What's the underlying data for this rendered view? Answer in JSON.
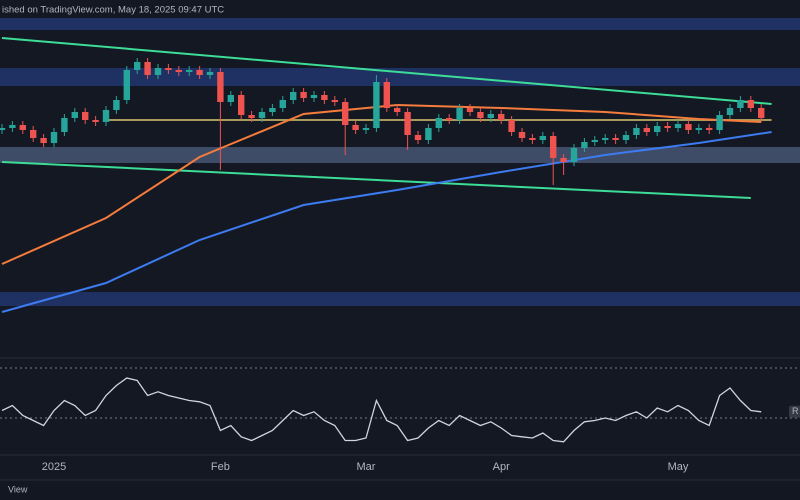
{
  "header": "ished on TradingView.com, May 18, 2025 09:47 UTC",
  "footer": "View",
  "chart_data": [
    {
      "type": "candlestick",
      "categories": [
        null,
        null,
        null,
        null,
        null,
        "2025",
        null,
        null,
        null,
        null,
        null,
        null,
        null,
        null,
        null,
        null,
        null,
        null,
        null,
        null,
        null,
        "Feb",
        null,
        null,
        null,
        null,
        null,
        null,
        null,
        null,
        null,
        null,
        null,
        null,
        null,
        "Mar",
        null,
        null,
        null,
        null,
        null,
        null,
        null,
        null,
        null,
        null,
        null,
        null,
        "Apr",
        null,
        null,
        null,
        null,
        null,
        null,
        null,
        null,
        null,
        null,
        null,
        null,
        null,
        null,
        null,
        null,
        "May",
        null,
        null,
        null,
        null,
        null,
        null,
        null,
        null
      ],
      "open": [
        230,
        232,
        235,
        230,
        222,
        217,
        228,
        242,
        248,
        240,
        238,
        250,
        260,
        290,
        298,
        285,
        292,
        290,
        288,
        290,
        285,
        288,
        258,
        265,
        245,
        242,
        248,
        252,
        260,
        268,
        262,
        265,
        260,
        258,
        235,
        230,
        232,
        278,
        252,
        248,
        225,
        220,
        232,
        242,
        240,
        252,
        248,
        242,
        246,
        240,
        228,
        222,
        220,
        224,
        202,
        198,
        212,
        218,
        220,
        222,
        220,
        225,
        232,
        228,
        234,
        232,
        236,
        230,
        232,
        230,
        245,
        252,
        260,
        252
      ],
      "high": [
        236,
        239,
        239,
        234,
        226,
        232,
        246,
        252,
        252,
        244,
        254,
        264,
        294,
        302,
        302,
        296,
        296,
        294,
        294,
        294,
        292,
        292,
        269,
        269,
        249,
        252,
        256,
        264,
        272,
        272,
        269,
        269,
        264,
        262,
        239,
        236,
        285,
        282,
        256,
        252,
        229,
        236,
        246,
        246,
        256,
        256,
        252,
        250,
        250,
        244,
        232,
        226,
        228,
        228,
        206,
        216,
        222,
        224,
        226,
        226,
        229,
        236,
        236,
        238,
        238,
        240,
        240,
        236,
        236,
        249,
        256,
        264,
        264,
        256
      ],
      "low": [
        226,
        228,
        226,
        218,
        213,
        213,
        224,
        238,
        236,
        234,
        234,
        246,
        256,
        286,
        281,
        281,
        286,
        284,
        284,
        281,
        281,
        190,
        254,
        241,
        238,
        238,
        244,
        248,
        256,
        258,
        258,
        256,
        254,
        205,
        226,
        226,
        228,
        248,
        244,
        210,
        216,
        216,
        228,
        236,
        236,
        244,
        238,
        238,
        236,
        224,
        218,
        216,
        216,
        175,
        185,
        194,
        208,
        214,
        216,
        216,
        216,
        221,
        224,
        224,
        228,
        228,
        226,
        226,
        226,
        226,
        241,
        248,
        248,
        238
      ],
      "close": [
        232,
        235,
        230,
        222,
        217,
        228,
        242,
        248,
        240,
        238,
        250,
        260,
        290,
        298,
        285,
        292,
        290,
        288,
        290,
        285,
        288,
        258,
        265,
        245,
        242,
        248,
        252,
        260,
        268,
        262,
        265,
        260,
        258,
        235,
        230,
        232,
        278,
        252,
        248,
        225,
        220,
        232,
        242,
        240,
        252,
        248,
        242,
        246,
        240,
        228,
        222,
        220,
        224,
        202,
        198,
        212,
        218,
        220,
        222,
        220,
        225,
        232,
        228,
        234,
        232,
        236,
        230,
        232,
        230,
        245,
        252,
        260,
        252,
        242
      ],
      "up_color": "#26a69a",
      "down_color": "#ef5350",
      "ylim": [
        5,
        360
      ],
      "bands": [
        {
          "color": "#233a7a",
          "range": [
            330,
            342
          ]
        },
        {
          "color": "#233a7a",
          "range": [
            274,
            292
          ]
        },
        {
          "color": "#4e5d80",
          "range": [
            197,
            213
          ]
        },
        {
          "color": "#233a7a",
          "range": [
            54,
            68
          ]
        }
      ],
      "lines": [
        {
          "color": "#a89a5a",
          "x": [
            10,
            74
          ],
          "values": [
            240,
            240
          ]
        },
        {
          "color": "#3ddc97",
          "x": [
            0,
            74
          ],
          "values": [
            322,
            256
          ]
        },
        {
          "color": "#3ddc97",
          "x": [
            0,
            72
          ],
          "values": [
            198,
            162
          ]
        },
        {
          "color": "#f57c3c",
          "x": [
            0,
            10,
            19,
            29,
            38,
            48,
            58,
            67,
            73
          ],
          "values": [
            96,
            142,
            203,
            246,
            255,
            252,
            248,
            241,
            238
          ]
        },
        {
          "color": "#3d7bf0",
          "x": [
            0,
            10,
            19,
            29,
            38,
            48,
            58,
            67,
            74
          ],
          "values": [
            48,
            77,
            120,
            155,
            170,
            188,
            205,
            217,
            228
          ]
        }
      ]
    },
    {
      "type": "line",
      "color": "#d1d4dc",
      "values": [
        36,
        40,
        32,
        28,
        24,
        36,
        44,
        40,
        32,
        36,
        48,
        56,
        62,
        60,
        48,
        51,
        48,
        46,
        44,
        43,
        40,
        20,
        24,
        15,
        12,
        16,
        20,
        28,
        36,
        32,
        35,
        28,
        24,
        12,
        12,
        14,
        44,
        28,
        24,
        12,
        14,
        22,
        28,
        24,
        32,
        28,
        24,
        27,
        22,
        16,
        15,
        14,
        18,
        12,
        11,
        20,
        27,
        28,
        30,
        28,
        32,
        35,
        30,
        38,
        35,
        40,
        36,
        28,
        24,
        48,
        54,
        44,
        36,
        35
      ],
      "ylim": [
        0,
        100
      ],
      "levels": [
        70,
        30
      ],
      "label": "R"
    }
  ]
}
